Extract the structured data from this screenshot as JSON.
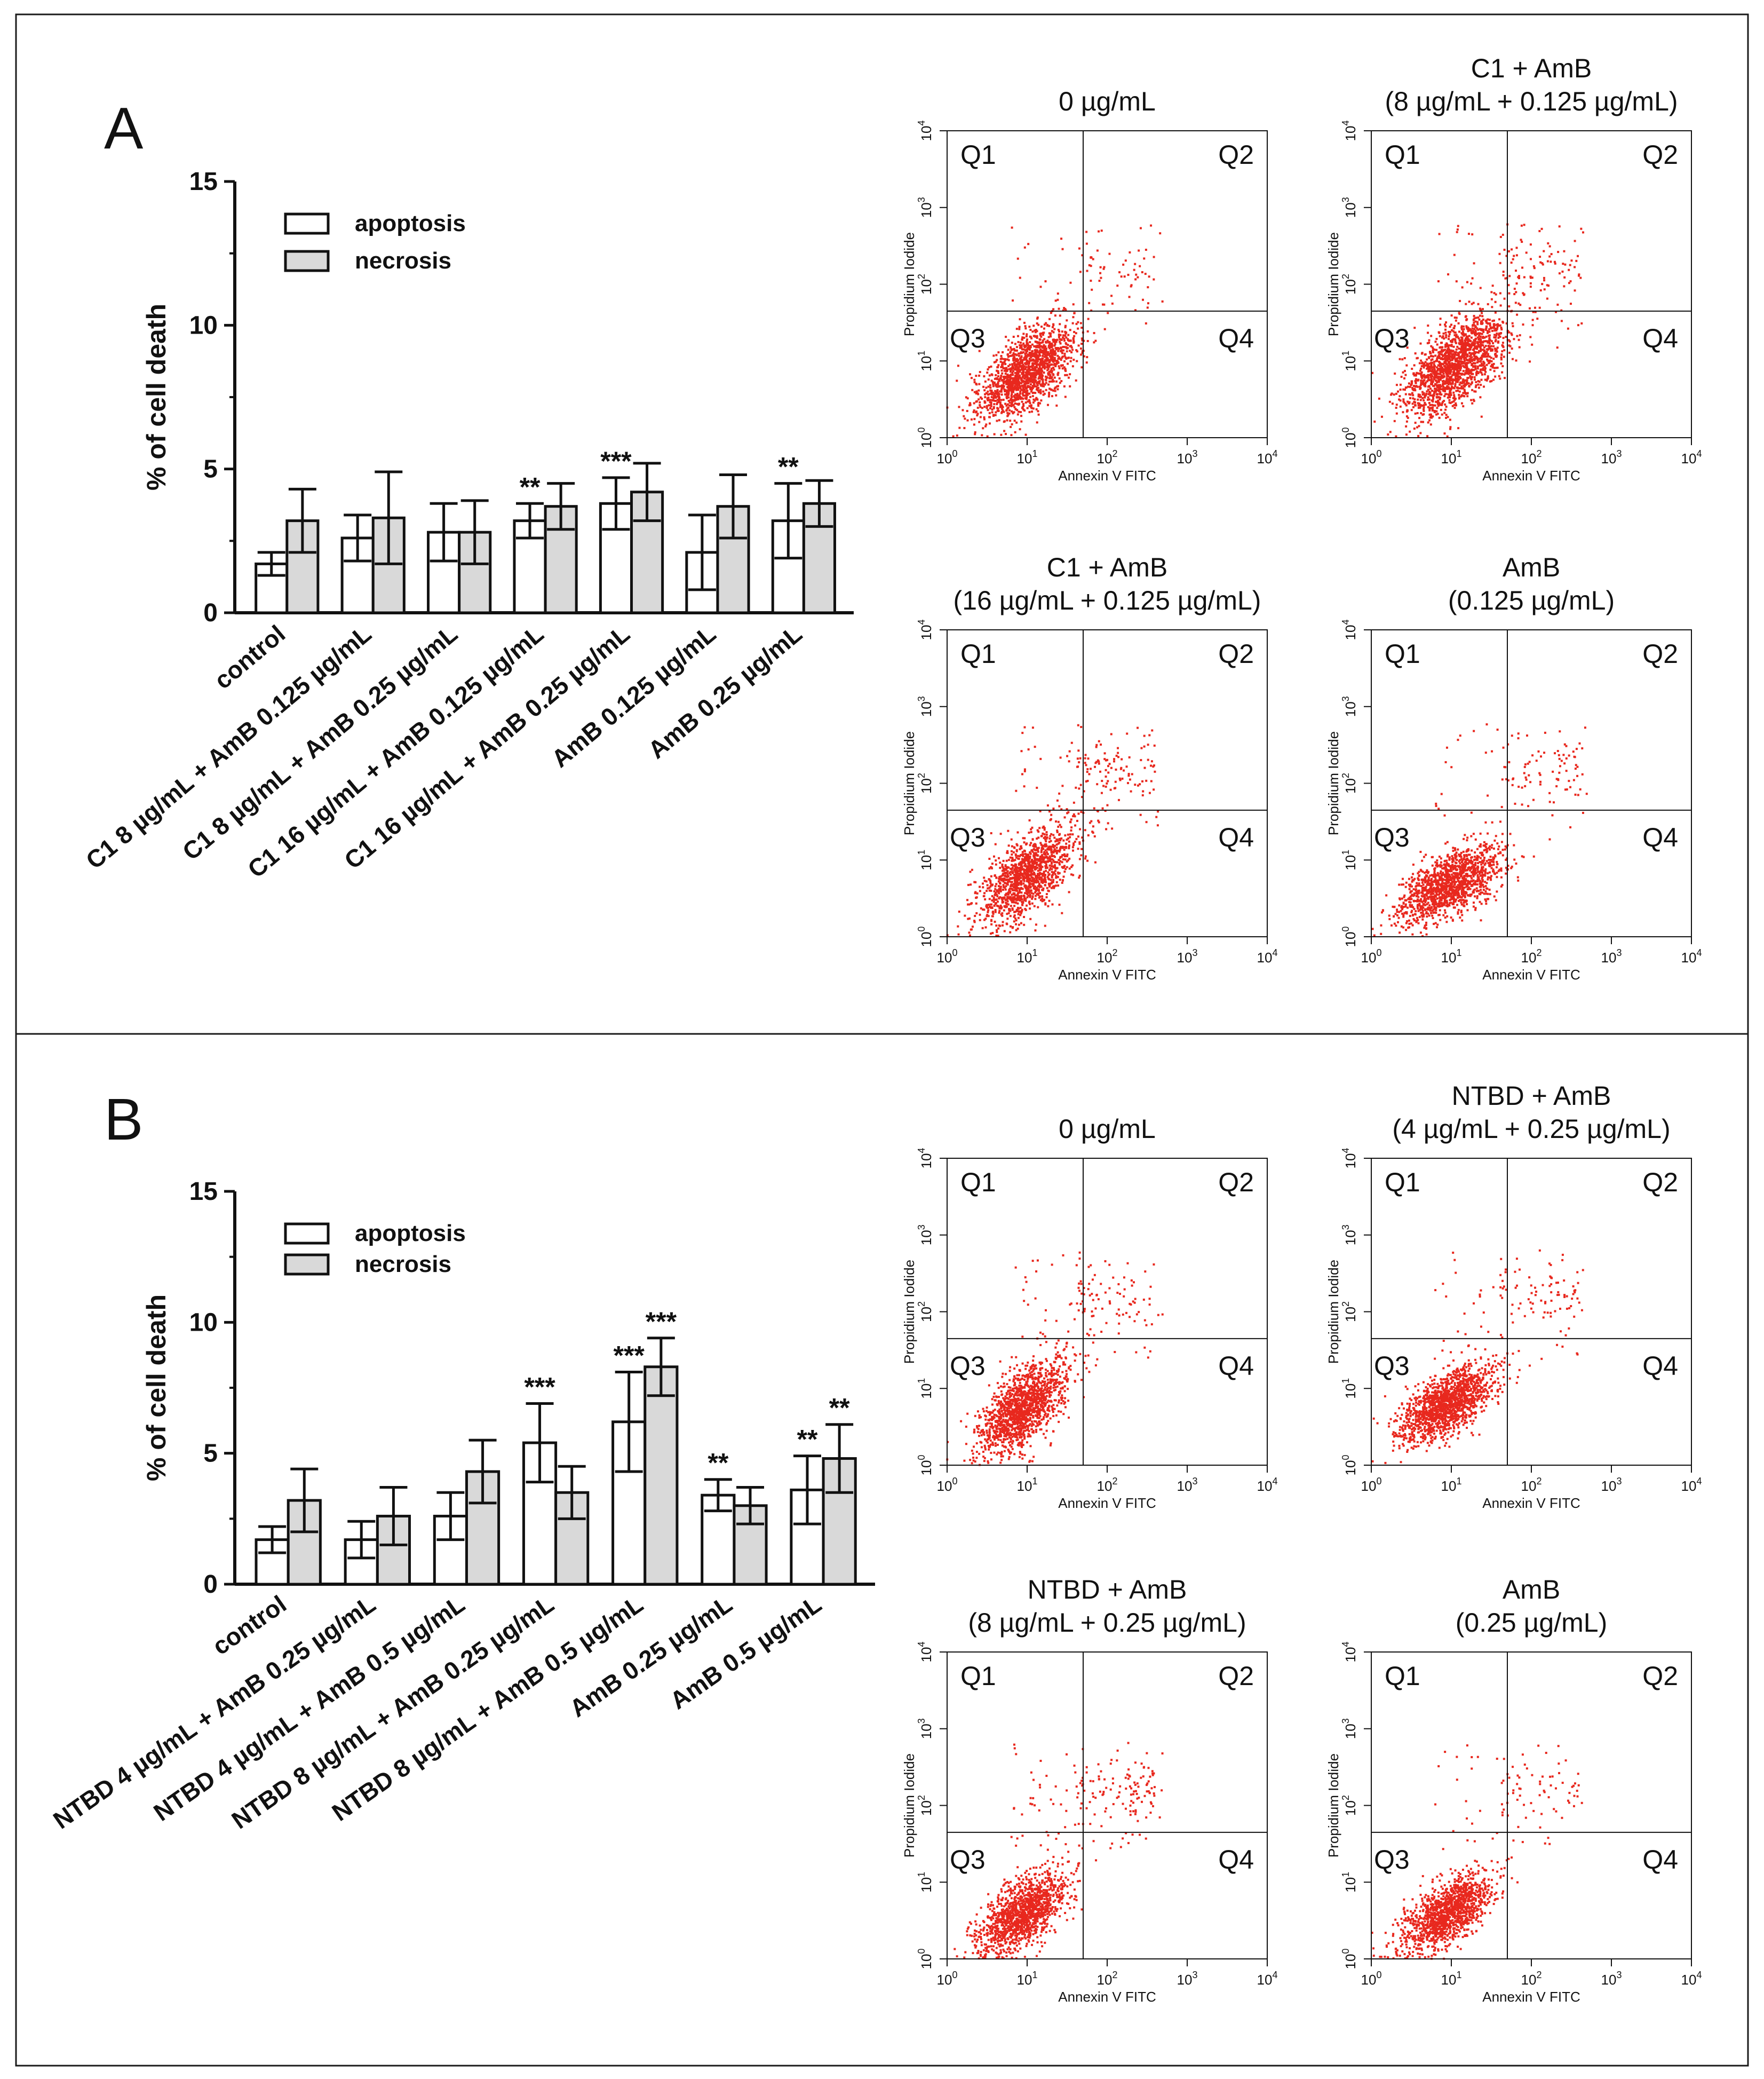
{
  "chart_data": [
    {
      "panel_label": "A",
      "type": "bar",
      "ylabel": "% of  cell death",
      "ylim": [
        0,
        15
      ],
      "yticks": [
        "0",
        "5",
        "10",
        "15"
      ],
      "legend": {
        "placement": "top-left",
        "entries": [
          "apoptosis",
          "necrosis"
        ]
      },
      "categories": [
        "control",
        "C1 8 µg/mL + AmB 0.125 µg/mL",
        "C1 8 µg/mL + AmB 0.25 µg/mL",
        "C1 16 µg/mL + AmB 0.125 µg/mL",
        "C1 16 µg/mL + AmB 0.25 µg/mL",
        "AmB 0.125 µg/mL",
        "AmB 0.25 µg/mL"
      ],
      "series": [
        {
          "name": "apoptosis",
          "color": "#ffffff",
          "values": [
            1.7,
            2.6,
            2.8,
            3.2,
            3.8,
            2.1,
            3.2
          ],
          "errors": [
            0.4,
            0.8,
            1.0,
            0.6,
            0.9,
            1.3,
            1.3
          ],
          "significance": [
            "",
            "",
            "",
            "**",
            "***",
            "",
            "**"
          ]
        },
        {
          "name": "necrosis",
          "color": "#d9d9d9",
          "values": [
            3.2,
            3.3,
            2.8,
            3.7,
            4.2,
            3.7,
            3.8
          ],
          "errors": [
            1.1,
            1.6,
            1.1,
            0.8,
            1.0,
            1.1,
            0.8
          ],
          "significance": [
            "",
            "",
            "",
            "",
            "",
            "",
            ""
          ]
        }
      ],
      "flow_plots": [
        {
          "title_lines": [
            "0 µg/mL"
          ],
          "xlabel": "Annexin V FITC",
          "ylabel": "Propidium Iodide",
          "quadrants": [
            "Q1",
            "Q2",
            "Q3",
            "Q4"
          ],
          "gate": [
            1.7,
            1.65
          ],
          "x_decades": [
            0,
            4
          ],
          "y_decades": [
            0,
            4
          ],
          "pop": {
            "mx": 1.0,
            "my": 0.85,
            "sx": 0.3,
            "sy": 0.3,
            "n": 1700,
            "tail": 0.05
          }
        },
        {
          "title_lines": [
            "C1 + AmB",
            "(8 µg/mL + 0.125 µg/mL)"
          ],
          "xlabel": "Annexin V FITC",
          "ylabel": "Propidium Iodide",
          "quadrants": [
            "Q1",
            "Q2",
            "Q3",
            "Q4"
          ],
          "gate": [
            1.7,
            1.65
          ],
          "x_decades": [
            0,
            4
          ],
          "y_decades": [
            0,
            4
          ],
          "pop": {
            "mx": 1.05,
            "my": 0.95,
            "sx": 0.32,
            "sy": 0.33,
            "n": 1800,
            "tail": 0.08
          }
        },
        {
          "title_lines": [
            "C1 + AmB",
            "(16 µg/mL + 0.125 µg/mL)"
          ],
          "xlabel": "Annexin V FITC",
          "ylabel": "Propidium Iodide",
          "quadrants": [
            "Q1",
            "Q2",
            "Q3",
            "Q4"
          ],
          "gate": [
            1.7,
            1.65
          ],
          "x_decades": [
            0,
            4
          ],
          "y_decades": [
            0,
            4
          ],
          "pop": {
            "mx": 1.0,
            "my": 0.8,
            "sx": 0.3,
            "sy": 0.3,
            "n": 1500,
            "tail": 0.1
          }
        },
        {
          "title_lines": [
            "AmB",
            "(0.125 µg/mL)"
          ],
          "xlabel": "Annexin V FITC",
          "ylabel": "Propidium Iodide",
          "quadrants": [
            "Q1",
            "Q2",
            "Q3",
            "Q4"
          ],
          "gate": [
            1.7,
            1.65
          ],
          "x_decades": [
            0,
            4
          ],
          "y_decades": [
            0,
            4
          ],
          "pop": {
            "mx": 1.0,
            "my": 0.7,
            "sx": 0.32,
            "sy": 0.25,
            "n": 1500,
            "tail": 0.07
          }
        }
      ]
    },
    {
      "panel_label": "B",
      "type": "bar",
      "ylabel": "% of  cell death",
      "ylim": [
        0,
        15
      ],
      "yticks": [
        "0",
        "5",
        "10",
        "15"
      ],
      "legend": {
        "placement": "top-left",
        "entries": [
          "apoptosis",
          "necrosis"
        ]
      },
      "categories": [
        "control",
        "NTBD 4 µg/mL + AmB 0.25 µg/mL",
        "NTBD 4 µg/mL + AmB 0.5 µg/mL",
        "NTBD 8 µg/mL + AmB 0.25 µg/mL",
        "NTBD 8 µg/mL + AmB 0.5 µg/mL",
        "AmB 0.25 µg/mL",
        "AmB 0.5 µg/mL"
      ],
      "series": [
        {
          "name": "apoptosis",
          "color": "#ffffff",
          "values": [
            1.7,
            1.7,
            2.6,
            5.4,
            6.2,
            3.4,
            3.6
          ],
          "errors": [
            0.5,
            0.7,
            0.9,
            1.5,
            1.9,
            0.6,
            1.3
          ],
          "significance": [
            "",
            "",
            "",
            "***",
            "***",
            "**",
            "**"
          ]
        },
        {
          "name": "necrosis",
          "color": "#d9d9d9",
          "values": [
            3.2,
            2.6,
            4.3,
            3.5,
            8.3,
            3.0,
            4.8
          ],
          "errors": [
            1.2,
            1.1,
            1.2,
            1.0,
            1.1,
            0.7,
            1.3
          ],
          "significance": [
            "",
            "",
            "",
            "",
            "***",
            "",
            "**"
          ]
        }
      ],
      "flow_plots": [
        {
          "title_lines": [
            "0 µg/mL"
          ],
          "xlabel": "Annexin V FITC",
          "ylabel": "Propidium Iodide",
          "quadrants": [
            "Q1",
            "Q2",
            "Q3",
            "Q4"
          ],
          "gate": [
            1.7,
            1.65
          ],
          "x_decades": [
            0,
            4
          ],
          "y_decades": [
            0,
            4
          ],
          "pop": {
            "mx": 0.95,
            "my": 0.75,
            "sx": 0.28,
            "sy": 0.3,
            "n": 1600,
            "tail": 0.07
          }
        },
        {
          "title_lines": [
            "NTBD + AmB",
            "(4 µg/mL + 0.25 µg/mL)"
          ],
          "xlabel": "Annexin V FITC",
          "ylabel": "Propidium Iodide",
          "quadrants": [
            "Q1",
            "Q2",
            "Q3",
            "Q4"
          ],
          "gate": [
            1.7,
            1.65
          ],
          "x_decades": [
            0,
            4
          ],
          "y_decades": [
            0,
            4
          ],
          "pop": {
            "mx": 0.95,
            "my": 0.8,
            "sx": 0.3,
            "sy": 0.25,
            "n": 1600,
            "tail": 0.07
          }
        },
        {
          "title_lines": [
            "NTBD + AmB",
            "(8 µg/mL + 0.25 µg/mL)"
          ],
          "xlabel": "Annexin V FITC",
          "ylabel": "Propidium Iodide",
          "quadrants": [
            "Q1",
            "Q2",
            "Q3",
            "Q4"
          ],
          "gate": [
            1.7,
            1.65
          ],
          "x_decades": [
            0,
            4
          ],
          "y_decades": [
            0,
            4
          ],
          "pop": {
            "mx": 0.95,
            "my": 0.6,
            "sx": 0.28,
            "sy": 0.27,
            "n": 1500,
            "tail": 0.12
          }
        },
        {
          "title_lines": [
            "AmB",
            "(0.25 µg/mL)"
          ],
          "xlabel": "Annexin V FITC",
          "ylabel": "Propidium Iodide",
          "quadrants": [
            "Q1",
            "Q2",
            "Q3",
            "Q4"
          ],
          "gate": [
            1.7,
            1.65
          ],
          "x_decades": [
            0,
            4
          ],
          "y_decades": [
            0,
            4
          ],
          "pop": {
            "mx": 0.95,
            "my": 0.6,
            "sx": 0.28,
            "sy": 0.25,
            "n": 1400,
            "tail": 0.08
          }
        }
      ]
    }
  ]
}
